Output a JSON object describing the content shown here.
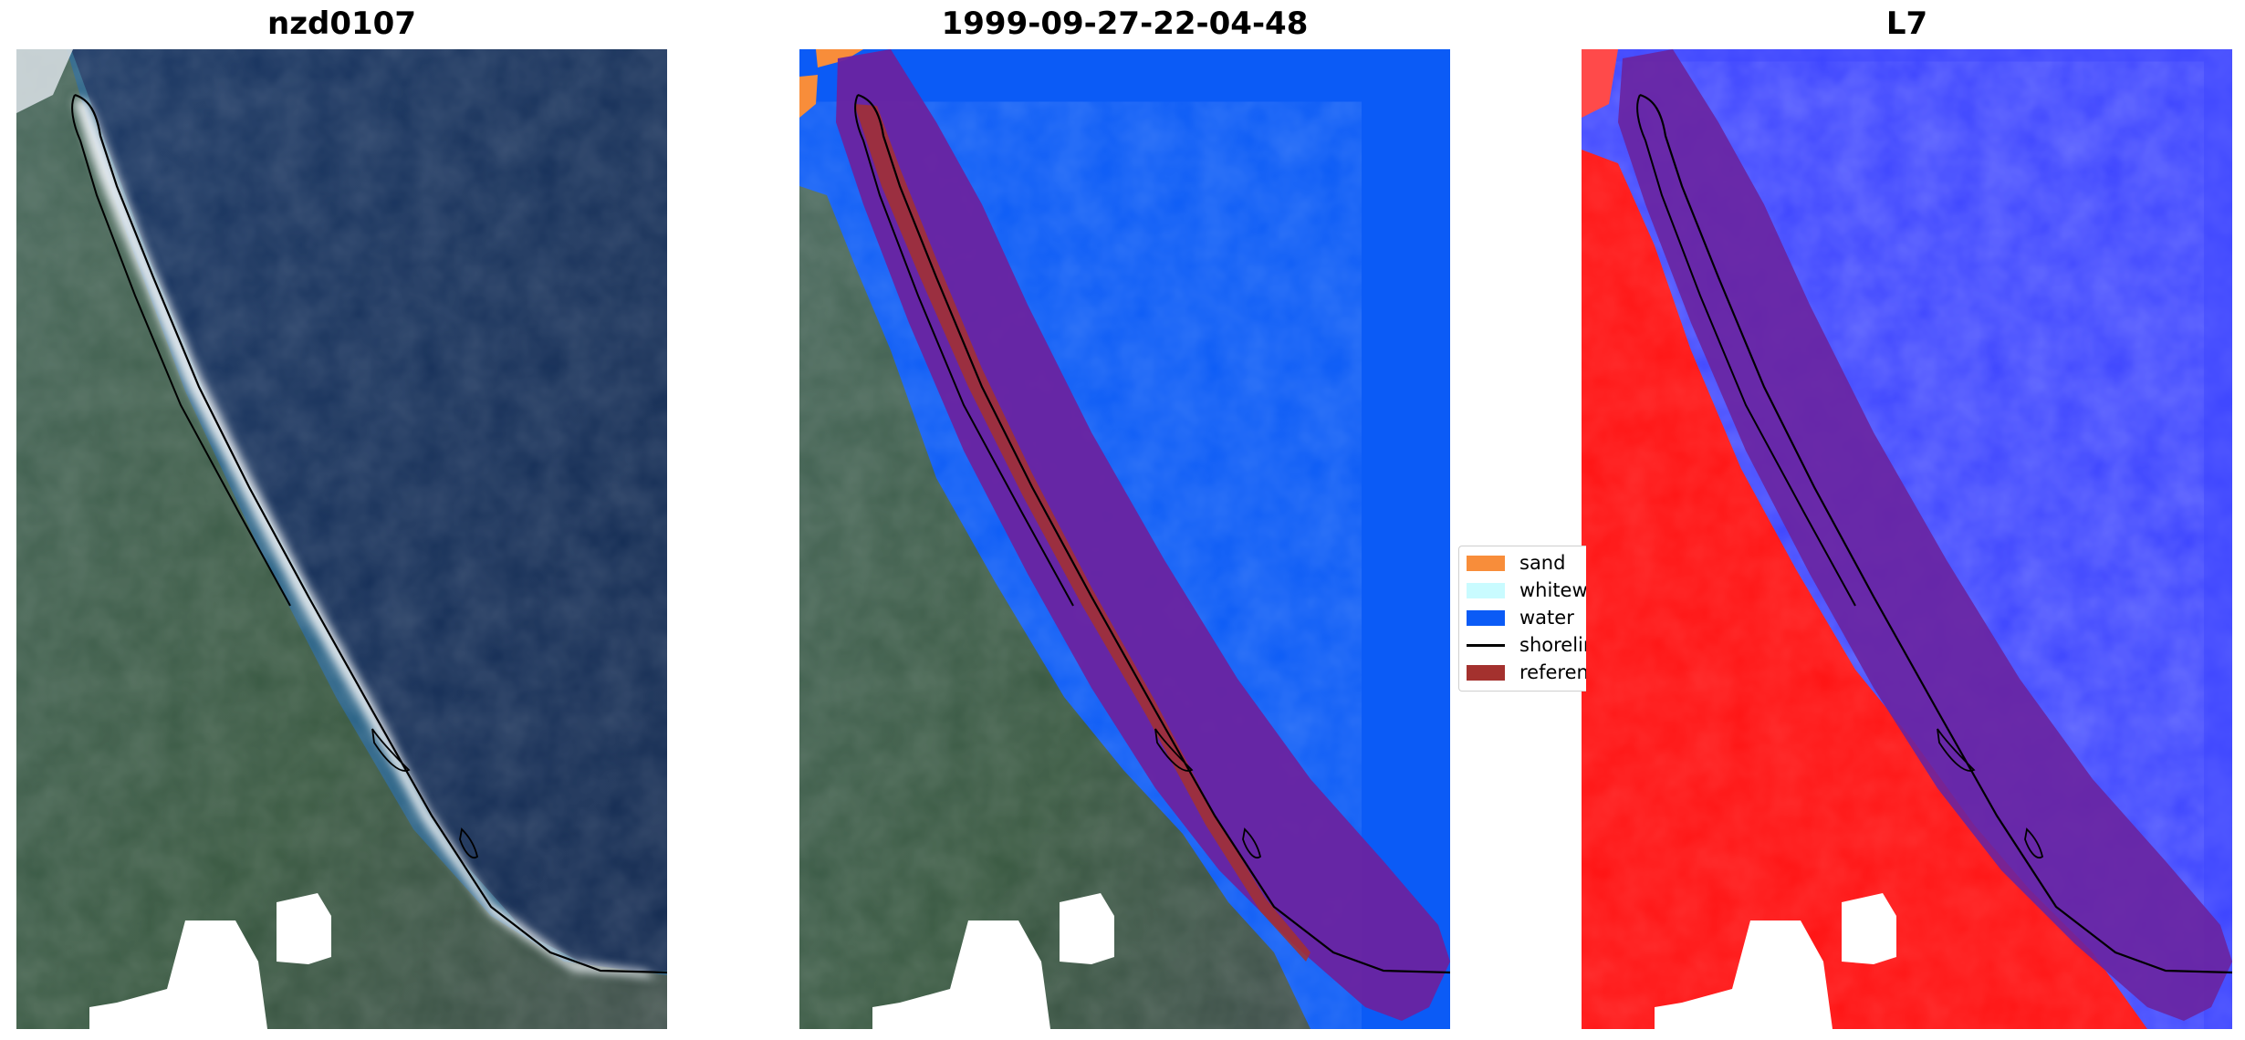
{
  "panels": [
    {
      "title": "nzd0107"
    },
    {
      "title": "1999-09-27-22-04-48"
    },
    {
      "title": "L7"
    }
  ],
  "legend": {
    "items": [
      {
        "label": "sand",
        "color": "#f88d3a"
      },
      {
        "label": "whitewater",
        "color": "#c9fbff"
      },
      {
        "label": "water",
        "color": "#0b5bf6"
      },
      {
        "label": "shoreline",
        "color": "#000000"
      },
      {
        "label": "reference shoreline buffer",
        "color": "#a4312e"
      }
    ]
  },
  "colors": {
    "ocean": "#15315c",
    "land": "#3a5b45",
    "classified_water": "#0b5bf6",
    "buffer_overlay": "#6a23a0",
    "mndwi_water": "#3c44ff",
    "mndwi_land": "#ff1313"
  }
}
